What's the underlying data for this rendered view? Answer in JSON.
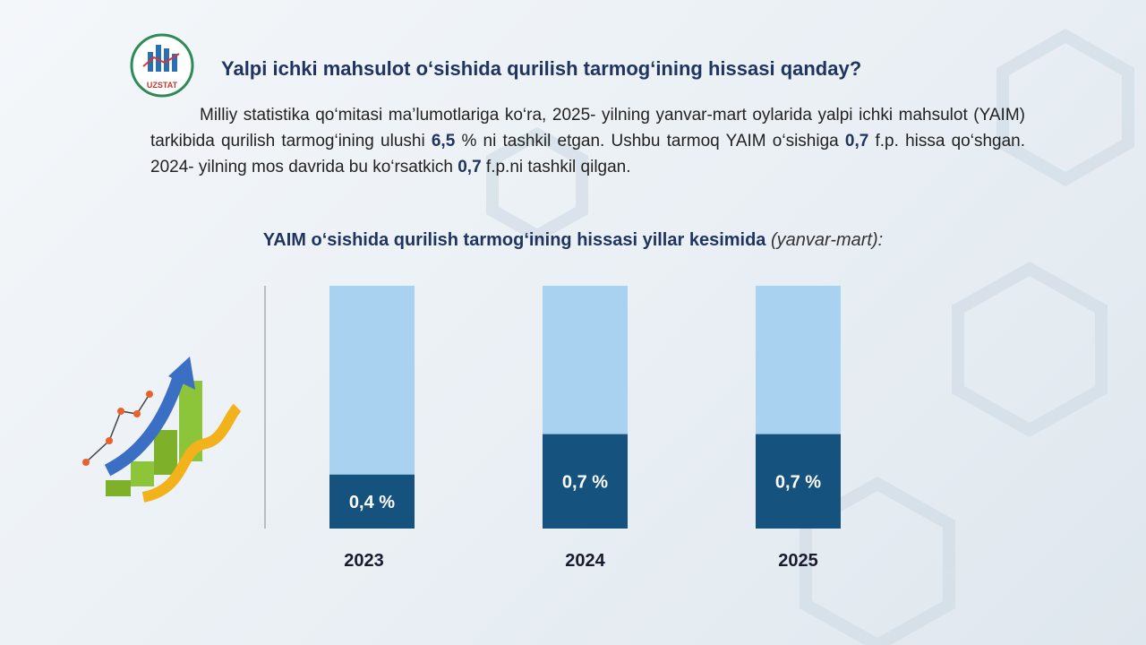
{
  "header": {
    "title": "Yalpi ichki mahsulot o‘sishida qurilish tarmog‘ining hissasi qanday?",
    "logo_text": "UZSTAT"
  },
  "paragraph": [
    "Milliy statistika qo‘mitasi ma’lumotlariga ko‘ra, 2025- yilning yanvar-mart oylarida yalpi ichki mahsulot (YAIM) tarkibida qurilish tarmog‘ining ulushi ",
    "6,5",
    " % ni tashkil etgan. Ushbu tarmoq YAIM o‘sishiga ",
    "0,7",
    " f.p. hissa qo‘shgan. 2024- yilning mos davrida bu ko‘rsatkich ",
    "0,7",
    " f.p.ni tashkil qilgan."
  ],
  "chart_data": {
    "type": "bar",
    "title": "YAIM o‘sishida qurilish tarmog‘ining hissasi yillar kesimida",
    "subtitle": "(yanvar-mart):",
    "categories": [
      "2023",
      "2024",
      "2025"
    ],
    "values": [
      0.4,
      0.7,
      0.7
    ],
    "value_labels": [
      "0,4 %",
      "0,7 %",
      "0,7 %"
    ],
    "color": "#16527e",
    "background_color": "#a9d1f0",
    "ylim": [
      0,
      1.8
    ]
  }
}
